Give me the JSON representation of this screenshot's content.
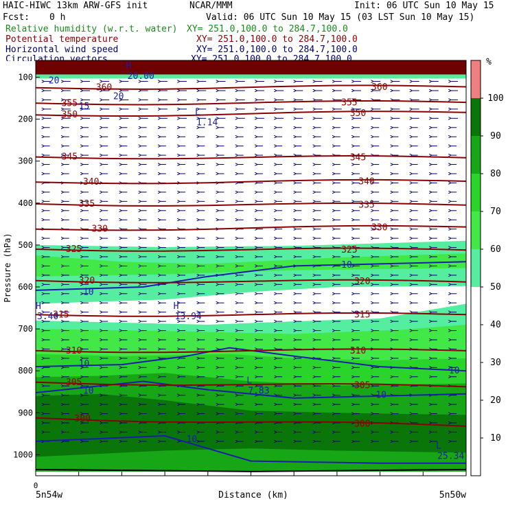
{
  "header": {
    "title_left": "HAIC-HIWC 13km ARW-GFS init",
    "center_org": "NCAR/MMM",
    "init_text": "Init: 06 UTC Sun 10 May 15",
    "fcst_label": "Fcst:",
    "fcst_value": "0 h",
    "valid_text": "Valid: 06 UTC Sun 10 May 15 (03 LST Sun 10 May 15)",
    "fields": [
      {
        "name": "Relative humidity (w.r.t. water)",
        "xy": "XY= 251.0,100.0 to 284.7,100.0",
        "color": "#1a8a1a"
      },
      {
        "name": "Potential temperature",
        "xy": "XY= 251.0,100.0 to 284.7,100.0",
        "color": "#8b0000"
      },
      {
        "name": "Horizontal wind speed",
        "xy": "XY= 251.0,100.0 to 284.7,100.0",
        "color": "#00006e"
      },
      {
        "name": "Circulation vectors",
        "xy": "XY= 251.0,100.0 to 284.7,100.0",
        "color": "#00006e"
      }
    ]
  },
  "chart_data": {
    "type": "heatmap",
    "description": "Vertical cross-section",
    "xlabel": "Distance (km)",
    "ylabel": "Pressure (hPa)",
    "x_left_tick": "0",
    "x_left_label": "5n54w",
    "x_right_label": "5n50w",
    "y_ticks": [
      100,
      200,
      300,
      400,
      500,
      600,
      700,
      800,
      900,
      1000
    ],
    "ylim": [
      1050,
      60
    ],
    "colorbar": {
      "unit": "%",
      "ticks": [
        10,
        20,
        30,
        40,
        50,
        60,
        70,
        80,
        90,
        100
      ],
      "bands": [
        {
          "from": 0,
          "to": 50,
          "color": "#ffffff"
        },
        {
          "from": 50,
          "to": 60,
          "color": "#55eda0"
        },
        {
          "from": 60,
          "to": 70,
          "color": "#42e848"
        },
        {
          "from": 70,
          "to": 80,
          "color": "#2ad42a"
        },
        {
          "from": 80,
          "to": 90,
          "color": "#16a616"
        },
        {
          "from": 90,
          "to": 100,
          "color": "#0a760a"
        },
        {
          "from": 100,
          "to": 110,
          "color": "#f08080"
        }
      ]
    },
    "theta_contours": [
      {
        "value": 360,
        "p_left": 125,
        "p_right": 123,
        "labels": [
          {
            "x": 0.14,
            "text": "360"
          },
          {
            "x": 0.78,
            "text": "360"
          }
        ]
      },
      {
        "value": 355,
        "p_left": 162,
        "p_right": 160,
        "labels": [
          {
            "x": 0.06,
            "text": "355"
          },
          {
            "x": 0.71,
            "text": "355"
          }
        ]
      },
      {
        "value": 350,
        "p_left": 190,
        "p_right": 184,
        "labels": [
          {
            "x": 0.06,
            "text": "350"
          },
          {
            "x": 0.73,
            "text": "350"
          }
        ]
      },
      {
        "value": 345,
        "p_left": 290,
        "p_right": 292,
        "labels": [
          {
            "x": 0.06,
            "text": "345"
          },
          {
            "x": 0.73,
            "text": "345"
          }
        ]
      },
      {
        "value": 340,
        "p_left": 350,
        "p_right": 348,
        "labels": [
          {
            "x": 0.11,
            "text": "340"
          },
          {
            "x": 0.75,
            "text": "340"
          }
        ]
      },
      {
        "value": 335,
        "p_left": 402,
        "p_right": 405,
        "labels": [
          {
            "x": 0.1,
            "text": "335"
          },
          {
            "x": 0.75,
            "text": "335"
          }
        ]
      },
      {
        "value": 330,
        "p_left": 462,
        "p_right": 457,
        "labels": [
          {
            "x": 0.13,
            "text": "330"
          },
          {
            "x": 0.78,
            "text": "330"
          }
        ]
      },
      {
        "value": 325,
        "p_left": 510,
        "p_right": 512,
        "labels": [
          {
            "x": 0.07,
            "text": "325"
          },
          {
            "x": 0.71,
            "text": "325"
          }
        ]
      },
      {
        "value": 320,
        "p_left": 585,
        "p_right": 588,
        "labels": [
          {
            "x": 0.1,
            "text": "320"
          },
          {
            "x": 0.74,
            "text": "320"
          }
        ]
      },
      {
        "value": 315,
        "p_left": 666,
        "p_right": 666,
        "labels": [
          {
            "x": 0.04,
            "text": "315"
          },
          {
            "x": 0.74,
            "text": "315"
          }
        ]
      },
      {
        "value": 310,
        "p_left": 752,
        "p_right": 752,
        "labels": [
          {
            "x": 0.07,
            "text": "310"
          },
          {
            "x": 0.73,
            "text": "310"
          }
        ]
      },
      {
        "value": 305,
        "p_left": 827,
        "p_right": 838,
        "labels": [
          {
            "x": 0.07,
            "text": "305"
          },
          {
            "x": 0.74,
            "text": "305"
          }
        ]
      },
      {
        "value": 300,
        "p_left": 912,
        "p_right": 932,
        "labels": [
          {
            "x": 0.09,
            "text": "300"
          },
          {
            "x": 0.74,
            "text": "300"
          }
        ]
      }
    ],
    "wind_labels": [
      {
        "x": 0.03,
        "p": 108,
        "text": "20"
      },
      {
        "x": 0.18,
        "p": 146,
        "text": "20"
      },
      {
        "x": 0.1,
        "p": 170,
        "text": "15"
      },
      {
        "x": 0.11,
        "p": 612,
        "text": "10"
      },
      {
        "x": 0.71,
        "p": 548,
        "text": "10"
      },
      {
        "x": 0.1,
        "p": 783,
        "text": "10"
      },
      {
        "x": 0.96,
        "p": 800,
        "text": "10"
      },
      {
        "x": 0.11,
        "p": 848,
        "text": "10"
      },
      {
        "x": 0.79,
        "p": 858,
        "text": "10"
      },
      {
        "x": 0.35,
        "p": 963,
        "text": "10"
      }
    ],
    "extrema": [
      {
        "type": "H",
        "x": 0.21,
        "p": 80,
        "value": "20.00"
      },
      {
        "type": "L",
        "x": 0.37,
        "p": 190,
        "value": "1.14"
      },
      {
        "type": "H",
        "x": 0.0,
        "p": 652,
        "value": "3.40"
      },
      {
        "type": "H",
        "x": 0.32,
        "p": 652,
        "value": "13.94"
      },
      {
        "type": "L",
        "x": 0.49,
        "p": 830,
        "value": "7.83"
      },
      {
        "type": "L",
        "x": 0.93,
        "p": 985,
        "value": "25.34"
      }
    ]
  }
}
